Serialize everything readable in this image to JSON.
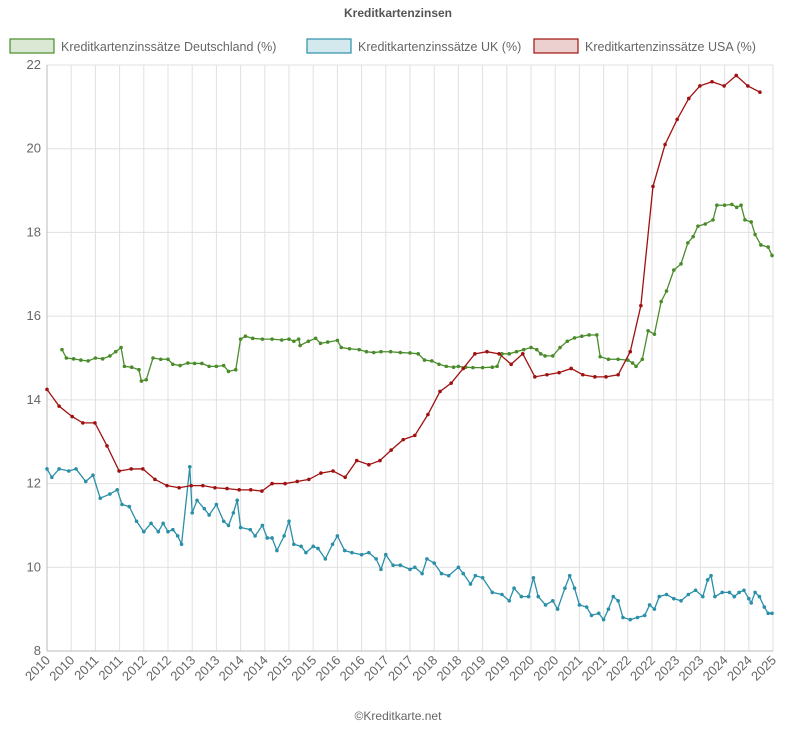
{
  "chart_data": {
    "type": "line",
    "title": "Kreditkartenzinsen",
    "source": "©Kreditkarte.net",
    "xlim": [
      2010,
      2025
    ],
    "xticks": [
      2010,
      {
        "value": 2010.5,
        "label": "2010"
      },
      2011,
      {
        "value": 2011.5,
        "label": "2011"
      },
      2012,
      {
        "value": 2012.5,
        "label": "2012"
      },
      2013,
      {
        "value": 2013.5,
        "label": "2013"
      },
      2014,
      {
        "value": 2014.5,
        "label": "2014"
      },
      2015,
      {
        "value": 2015.5,
        "label": "2015"
      },
      2016,
      {
        "value": 2016.5,
        "label": "2016"
      },
      2017,
      {
        "value": 2017.5,
        "label": "2017"
      },
      2018,
      {
        "value": 2018.5,
        "label": "2018"
      },
      2019,
      {
        "value": 2019.5,
        "label": "2019"
      },
      2020,
      {
        "value": 2020.5,
        "label": "2020"
      },
      2021,
      {
        "value": 2021.5,
        "label": "2021"
      },
      2022,
      {
        "value": 2022.5,
        "label": "2022"
      },
      2023,
      {
        "value": 2023.5,
        "label": "2023"
      },
      2024,
      {
        "value": 2024.5,
        "label": "2024"
      },
      2025
    ],
    "ylim": [
      8,
      22
    ],
    "yticks": [
      8,
      10,
      12,
      14,
      16,
      18,
      20,
      22
    ],
    "grid": true,
    "legend": "top",
    "series": [
      {
        "name": "Kreditkartenzinssätze Deutschland (%)",
        "color": "#4a8c2a",
        "x": [
          2010.31,
          2010.4,
          2010.55,
          2010.7,
          2010.85,
          2011.0,
          2011.15,
          2011.3,
          2011.42,
          2011.53,
          2011.6,
          2011.75,
          2011.9,
          2011.95,
          2012.05,
          2012.19,
          2012.35,
          2012.5,
          2012.6,
          2012.75,
          2012.91,
          2013.05,
          2013.2,
          2013.35,
          2013.5,
          2013.65,
          2013.75,
          2013.9,
          2014.0,
          2014.1,
          2014.25,
          2014.45,
          2014.65,
          2014.85,
          2015.0,
          2015.1,
          2015.2,
          2015.23,
          2015.4,
          2015.55,
          2015.65,
          2015.8,
          2016.0,
          2016.08,
          2016.25,
          2016.45,
          2016.6,
          2016.75,
          2016.9,
          2017.1,
          2017.3,
          2017.5,
          2017.67,
          2017.8,
          2017.95,
          2018.1,
          2018.25,
          2018.4,
          2018.5,
          2018.65,
          2018.8,
          2019.0,
          2019.2,
          2019.3,
          2019.4,
          2019.55,
          2019.7,
          2019.85,
          2020.0,
          2020.12,
          2020.2,
          2020.29,
          2020.45,
          2020.6,
          2020.75,
          2020.9,
          2021.05,
          2021.2,
          2021.36,
          2021.43,
          2021.6,
          2021.8,
          2022.0,
          2022.1,
          2022.17,
          2022.3,
          2022.42,
          2022.55,
          2022.69,
          2022.8,
          2022.95,
          2023.1,
          2023.24,
          2023.35,
          2023.45,
          2023.6,
          2023.76,
          2023.84,
          2024.0,
          2024.15,
          2024.25,
          2024.34,
          2024.42,
          2024.55,
          2024.63,
          2024.75,
          2024.9,
          2024.98
        ],
        "values": [
          15.2,
          15.0,
          14.98,
          14.95,
          14.93,
          15.0,
          14.98,
          15.05,
          15.15,
          15.25,
          14.8,
          14.78,
          14.72,
          14.45,
          14.48,
          15.0,
          14.97,
          14.97,
          14.85,
          14.82,
          14.88,
          14.87,
          14.87,
          14.8,
          14.8,
          14.82,
          14.68,
          14.72,
          15.45,
          15.52,
          15.47,
          15.45,
          15.45,
          15.43,
          15.45,
          15.4,
          15.45,
          15.3,
          15.4,
          15.47,
          15.35,
          15.38,
          15.42,
          15.25,
          15.22,
          15.2,
          15.15,
          15.13,
          15.15,
          15.15,
          15.13,
          15.12,
          15.1,
          14.95,
          14.93,
          14.85,
          14.8,
          14.78,
          14.8,
          14.78,
          14.77,
          14.77,
          14.78,
          14.8,
          15.1,
          15.1,
          15.15,
          15.2,
          15.25,
          15.2,
          15.1,
          15.05,
          15.05,
          15.25,
          15.4,
          15.48,
          15.52,
          15.55,
          15.55,
          15.03,
          14.97,
          14.97,
          14.95,
          14.88,
          14.8,
          14.97,
          15.65,
          15.57,
          16.35,
          16.6,
          17.1,
          17.25,
          17.75,
          17.9,
          18.15,
          18.2,
          18.3,
          18.65,
          18.65,
          18.67,
          18.6,
          18.65,
          18.3,
          18.25,
          17.95,
          17.7,
          17.65,
          17.45
        ]
      },
      {
        "name": "Kreditkartenzinssätze UK (%)",
        "color": "#2a8fa8",
        "x": [
          2010.0,
          2010.1,
          2010.25,
          2010.45,
          2010.6,
          2010.8,
          2010.95,
          2011.1,
          2011.3,
          2011.45,
          2011.55,
          2011.7,
          2011.85,
          2012.0,
          2012.15,
          2012.3,
          2012.4,
          2012.5,
          2012.6,
          2012.7,
          2012.78,
          2012.95,
          2013.0,
          2013.1,
          2013.25,
          2013.35,
          2013.5,
          2013.65,
          2013.75,
          2013.85,
          2013.93,
          2014.0,
          2014.2,
          2014.3,
          2014.45,
          2014.55,
          2014.65,
          2014.75,
          2014.9,
          2015.0,
          2015.1,
          2015.25,
          2015.35,
          2015.5,
          2015.6,
          2015.75,
          2015.9,
          2016.0,
          2016.15,
          2016.3,
          2016.5,
          2016.65,
          2016.8,
          2016.9,
          2017.0,
          2017.15,
          2017.3,
          2017.5,
          2017.6,
          2017.75,
          2017.85,
          2018.0,
          2018.15,
          2018.3,
          2018.5,
          2018.6,
          2018.75,
          2018.85,
          2019.0,
          2019.2,
          2019.4,
          2019.55,
          2019.65,
          2019.8,
          2019.95,
          2020.05,
          2020.15,
          2020.3,
          2020.45,
          2020.55,
          2020.7,
          2020.8,
          2020.9,
          2021.0,
          2021.15,
          2021.25,
          2021.4,
          2021.5,
          2021.6,
          2021.7,
          2021.8,
          2021.9,
          2022.05,
          2022.2,
          2022.35,
          2022.45,
          2022.55,
          2022.65,
          2022.8,
          2022.95,
          2023.1,
          2023.25,
          2023.4,
          2023.55,
          2023.65,
          2023.72,
          2023.8,
          2023.95,
          2024.1,
          2024.2,
          2024.3,
          2024.4,
          2024.5,
          2024.55,
          2024.63,
          2024.72,
          2024.82,
          2024.9,
          2024.98
        ],
        "values": [
          12.35,
          12.15,
          12.35,
          12.3,
          12.35,
          12.05,
          12.2,
          11.65,
          11.75,
          11.85,
          11.5,
          11.45,
          11.1,
          10.85,
          11.05,
          10.85,
          11.05,
          10.85,
          10.9,
          10.75,
          10.55,
          12.4,
          11.3,
          11.6,
          11.4,
          11.25,
          11.5,
          11.1,
          11.0,
          11.3,
          11.6,
          10.95,
          10.9,
          10.75,
          11.0,
          10.7,
          10.7,
          10.4,
          10.75,
          11.1,
          10.55,
          10.5,
          10.35,
          10.5,
          10.45,
          10.2,
          10.55,
          10.75,
          10.4,
          10.35,
          10.3,
          10.35,
          10.2,
          9.95,
          10.3,
          10.05,
          10.05,
          9.95,
          10.0,
          9.85,
          10.2,
          10.1,
          9.85,
          9.8,
          10.0,
          9.85,
          9.6,
          9.8,
          9.75,
          9.4,
          9.35,
          9.2,
          9.5,
          9.3,
          9.3,
          9.75,
          9.3,
          9.1,
          9.2,
          9.0,
          9.5,
          9.8,
          9.5,
          9.1,
          9.05,
          8.85,
          8.9,
          8.75,
          9.0,
          9.3,
          9.2,
          8.8,
          8.75,
          8.8,
          8.85,
          9.1,
          9.0,
          9.3,
          9.35,
          9.25,
          9.2,
          9.35,
          9.45,
          9.3,
          9.7,
          9.8,
          9.3,
          9.4,
          9.4,
          9.3,
          9.4,
          9.45,
          9.25,
          9.15,
          9.4,
          9.3,
          9.05,
          8.9,
          8.9
        ]
      },
      {
        "name": "Kreditkartenzinssätze USA (%)",
        "color": "#a01010",
        "x": [
          2010.0,
          2010.25,
          2010.52,
          2010.74,
          2010.99,
          2011.24,
          2011.49,
          2011.74,
          2011.98,
          2012.23,
          2012.48,
          2012.73,
          2012.98,
          2013.22,
          2013.47,
          2013.72,
          2013.97,
          2014.21,
          2014.44,
          2014.65,
          2014.92,
          2015.17,
          2015.41,
          2015.66,
          2015.91,
          2016.16,
          2016.4,
          2016.65,
          2016.88,
          2017.11,
          2017.36,
          2017.6,
          2017.87,
          2018.12,
          2018.35,
          2018.6,
          2018.84,
          2019.09,
          2019.34,
          2019.59,
          2019.83,
          2020.08,
          2020.33,
          2020.58,
          2020.83,
          2021.07,
          2021.32,
          2021.55,
          2021.8,
          2022.05,
          2022.27,
          2022.52,
          2022.77,
          2023.02,
          2023.26,
          2023.49,
          2023.74,
          2023.99,
          2024.24,
          2024.48,
          2024.73
        ],
        "values": [
          14.25,
          13.85,
          13.6,
          13.45,
          13.45,
          12.9,
          12.3,
          12.35,
          12.35,
          12.1,
          11.95,
          11.9,
          11.95,
          11.95,
          11.9,
          11.88,
          11.85,
          11.85,
          11.82,
          12.0,
          12.0,
          12.05,
          12.1,
          12.25,
          12.3,
          12.15,
          12.55,
          12.45,
          12.55,
          12.8,
          13.05,
          13.15,
          13.65,
          14.2,
          14.4,
          14.75,
          15.1,
          15.15,
          15.1,
          14.85,
          15.1,
          14.55,
          14.6,
          14.65,
          14.75,
          14.6,
          14.55,
          14.55,
          14.6,
          15.15,
          16.25,
          19.1,
          20.1,
          20.7,
          21.2,
          21.5,
          21.6,
          21.5,
          21.75,
          21.5,
          21.35
        ]
      }
    ]
  }
}
